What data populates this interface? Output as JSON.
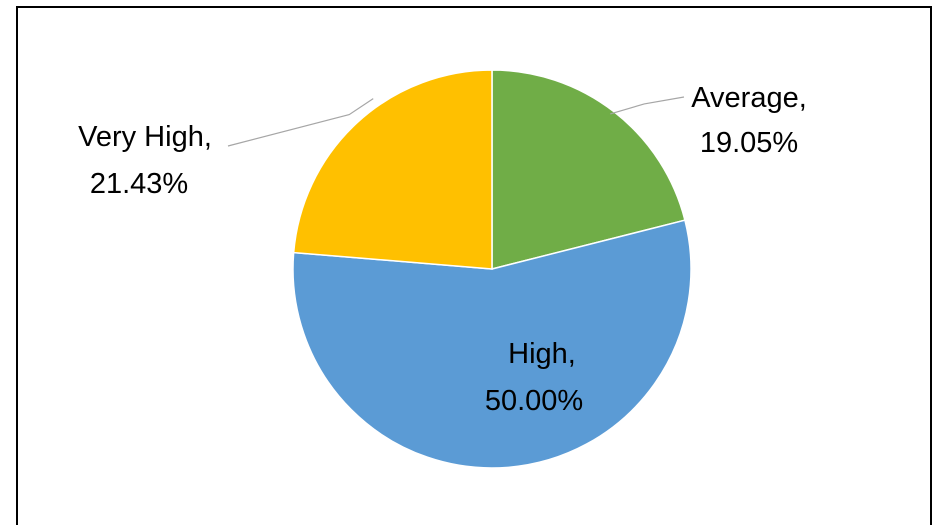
{
  "chart_data": {
    "type": "pie",
    "title": "",
    "categories": [
      "Average",
      "High",
      "Very High"
    ],
    "values": [
      19.05,
      50.0,
      21.43
    ],
    "value_format": "percent",
    "colors": [
      "#70AD47",
      "#5B9BD5",
      "#FFC000"
    ],
    "data_labels": [
      {
        "name": "Average,",
        "value": "19.05%"
      },
      {
        "name": "High,",
        "value": "50.00%"
      },
      {
        "name": "Very High,",
        "value": "21.43%"
      }
    ],
    "legend": "none",
    "start_angle_deg": 0,
    "direction": "clockwise"
  }
}
